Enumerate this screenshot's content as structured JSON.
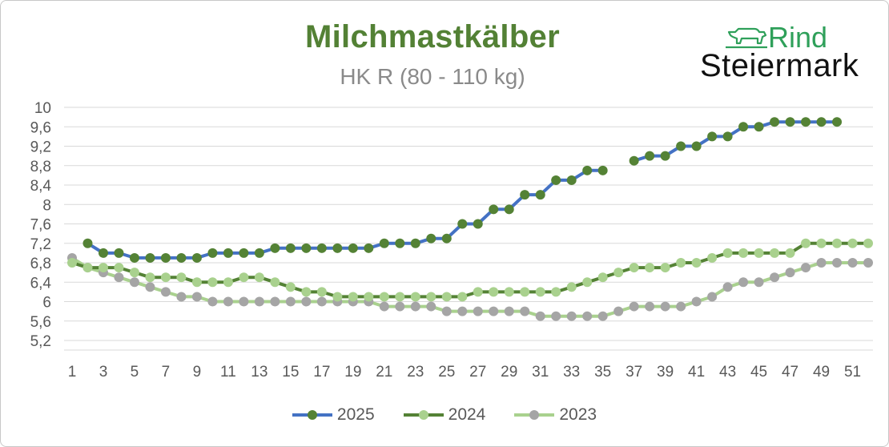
{
  "title": "Milchmastkälber",
  "subtitle": "HK R (80 - 110 kg)",
  "logo": {
    "word1": "Rind",
    "word2": "Steiermark",
    "icon": "cow-icon"
  },
  "colors": {
    "title": "#538135",
    "marker": "#548235",
    "s2025": "#4472c4",
    "s2024": "#548235",
    "s2024_marker": "#a9d18e",
    "s2023": "#a9d18e",
    "s2023_marker": "#a5a5a5",
    "grid": "#d9d9d9"
  },
  "chart_data": {
    "type": "line",
    "title": "Milchmastkälber",
    "subtitle": "HK R (80 - 110 kg)",
    "xlabel": "",
    "ylabel": "",
    "x": [
      1,
      2,
      3,
      4,
      5,
      6,
      7,
      8,
      9,
      10,
      11,
      12,
      13,
      14,
      15,
      16,
      17,
      18,
      19,
      20,
      21,
      22,
      23,
      24,
      25,
      26,
      27,
      28,
      29,
      30,
      31,
      32,
      33,
      34,
      35,
      36,
      37,
      38,
      39,
      40,
      41,
      42,
      43,
      44,
      45,
      46,
      47,
      48,
      49,
      50,
      51,
      52
    ],
    "x_tick_labels": [
      "1",
      "3",
      "5",
      "7",
      "9",
      "11",
      "13",
      "15",
      "17",
      "19",
      "21",
      "23",
      "25",
      "27",
      "29",
      "31",
      "33",
      "35",
      "37",
      "39",
      "41",
      "43",
      "45",
      "47",
      "49",
      "51"
    ],
    "ylim": [
      5.2,
      10
    ],
    "y_tick_labels": [
      "5,2",
      "5,6",
      "6",
      "6,4",
      "6,8",
      "7,2",
      "7,6",
      "8",
      "8,4",
      "8,8",
      "9,2",
      "9,6",
      "10"
    ],
    "y_ticks": [
      5.2,
      5.6,
      6.0,
      6.4,
      6.8,
      7.2,
      7.6,
      8.0,
      8.4,
      8.8,
      9.2,
      9.6,
      10.0
    ],
    "grid": true,
    "legend": "bottom",
    "series": [
      {
        "name": "2025",
        "values": [
          null,
          7.2,
          7.0,
          7.0,
          6.9,
          6.9,
          6.9,
          6.9,
          6.9,
          7.0,
          7.0,
          7.0,
          7.0,
          7.1,
          7.1,
          7.1,
          7.1,
          7.1,
          7.1,
          7.1,
          7.2,
          7.2,
          7.2,
          7.3,
          7.3,
          7.6,
          7.6,
          7.9,
          7.9,
          8.2,
          8.2,
          8.5,
          8.5,
          8.7,
          8.7,
          null,
          8.9,
          9.0,
          9.0,
          9.2,
          9.2,
          9.4,
          9.4,
          9.6,
          9.6,
          9.7,
          9.7,
          9.7,
          9.7,
          9.7,
          null,
          null
        ]
      },
      {
        "name": "2024",
        "values": [
          6.8,
          6.7,
          6.7,
          6.7,
          6.6,
          6.5,
          6.5,
          6.5,
          6.4,
          6.4,
          6.4,
          6.5,
          6.5,
          6.4,
          6.3,
          6.2,
          6.2,
          6.1,
          6.1,
          6.1,
          6.1,
          6.1,
          6.1,
          6.1,
          6.1,
          6.1,
          6.2,
          6.2,
          6.2,
          6.2,
          6.2,
          6.2,
          6.3,
          6.4,
          6.5,
          6.6,
          6.7,
          6.7,
          6.7,
          6.8,
          6.8,
          6.9,
          7.0,
          7.0,
          7.0,
          7.0,
          7.0,
          7.2,
          7.2,
          7.2,
          7.2,
          7.2
        ]
      },
      {
        "name": "2023",
        "values": [
          6.9,
          6.7,
          6.6,
          6.5,
          6.4,
          6.3,
          6.2,
          6.1,
          6.1,
          6.0,
          6.0,
          6.0,
          6.0,
          6.0,
          6.0,
          6.0,
          6.0,
          6.0,
          6.0,
          6.0,
          5.9,
          5.9,
          5.9,
          5.9,
          5.8,
          5.8,
          5.8,
          5.8,
          5.8,
          5.8,
          5.7,
          5.7,
          5.7,
          5.7,
          5.7,
          5.8,
          5.9,
          5.9,
          5.9,
          5.9,
          6.0,
          6.1,
          6.3,
          6.4,
          6.4,
          6.5,
          6.6,
          6.7,
          6.8,
          6.8,
          6.8,
          6.8
        ]
      }
    ]
  }
}
